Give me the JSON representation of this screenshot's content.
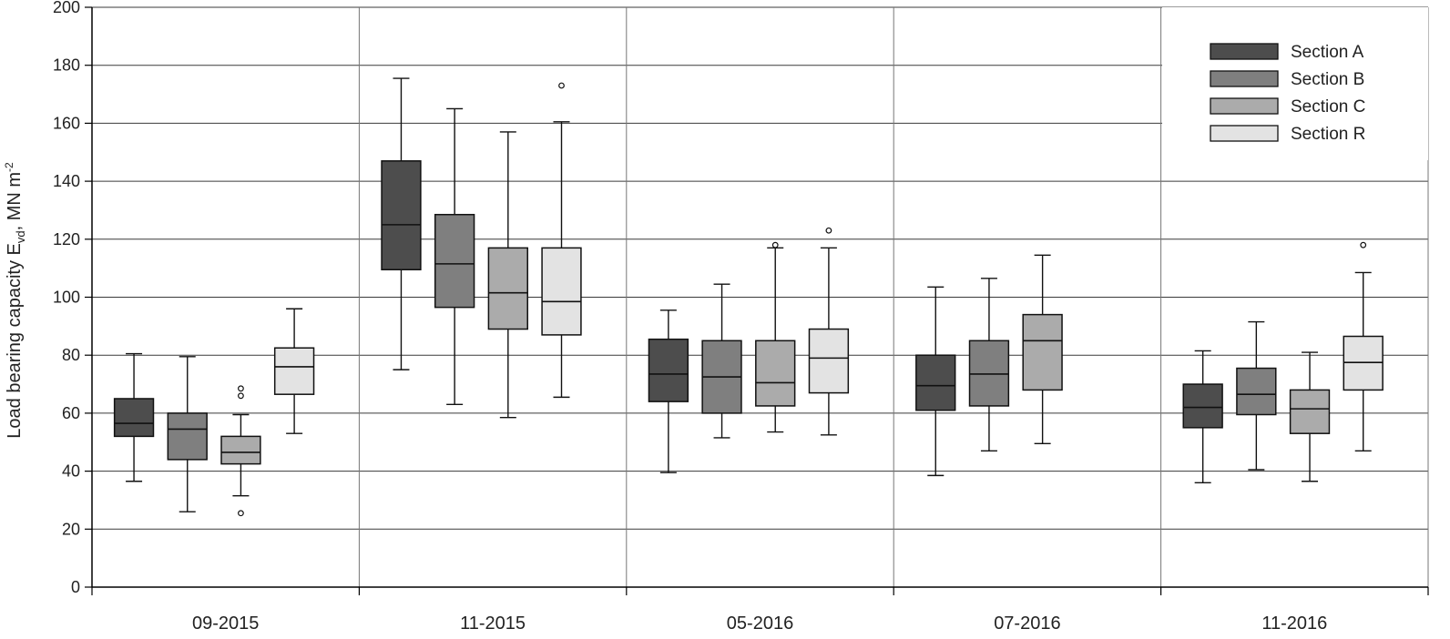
{
  "chart_data": {
    "type": "boxplot",
    "ylabel": {
      "main": "Load bearing capacity E",
      "sub": "vd",
      "unit": ", MN m",
      "sup": "-2"
    },
    "ylim": [
      0,
      200
    ],
    "yticks": [
      0,
      20,
      40,
      60,
      80,
      100,
      120,
      140,
      160,
      180,
      200
    ],
    "grid": true,
    "legend_position": "top-right",
    "categories": [
      "09-2015",
      "11-2015",
      "05-2016",
      "07-2016",
      "11-2016"
    ],
    "series": [
      {
        "name": "Section A",
        "color": "#4d4d4d",
        "boxes": [
          {
            "category": "09-2015",
            "whisker_low": 36.5,
            "q1": 52,
            "median": 56.5,
            "q3": 65,
            "whisker_high": 80.5,
            "outliers": []
          },
          {
            "category": "11-2015",
            "whisker_low": 75,
            "q1": 109.5,
            "median": 125,
            "q3": 147,
            "whisker_high": 175.5,
            "outliers": []
          },
          {
            "category": "05-2016",
            "whisker_low": 39.5,
            "q1": 64,
            "median": 73.5,
            "q3": 85.5,
            "whisker_high": 95.5,
            "outliers": []
          },
          {
            "category": "07-2016",
            "whisker_low": 38.5,
            "q1": 61,
            "median": 69.5,
            "q3": 80,
            "whisker_high": 103.5,
            "outliers": []
          },
          {
            "category": "11-2016",
            "whisker_low": 36,
            "q1": 55,
            "median": 62,
            "q3": 70,
            "whisker_high": 81.5,
            "outliers": []
          }
        ]
      },
      {
        "name": "Section B",
        "color": "#7f7f7f",
        "boxes": [
          {
            "category": "09-2015",
            "whisker_low": 26,
            "q1": 44,
            "median": 54.5,
            "q3": 60,
            "whisker_high": 79.5,
            "outliers": []
          },
          {
            "category": "11-2015",
            "whisker_low": 63,
            "q1": 96.5,
            "median": 111.5,
            "q3": 128.5,
            "whisker_high": 165,
            "outliers": []
          },
          {
            "category": "05-2016",
            "whisker_low": 51.5,
            "q1": 60,
            "median": 72.5,
            "q3": 85,
            "whisker_high": 104.5,
            "outliers": []
          },
          {
            "category": "07-2016",
            "whisker_low": 47,
            "q1": 62.5,
            "median": 73.5,
            "q3": 85,
            "whisker_high": 106.5,
            "outliers": []
          },
          {
            "category": "11-2016",
            "whisker_low": 40.5,
            "q1": 59.5,
            "median": 66.5,
            "q3": 75.5,
            "whisker_high": 91.5,
            "outliers": []
          }
        ]
      },
      {
        "name": "Section C",
        "color": "#ababab",
        "boxes": [
          {
            "category": "09-2015",
            "whisker_low": 31.5,
            "q1": 42.5,
            "median": 46.5,
            "q3": 52,
            "whisker_high": 59.5,
            "outliers": [
              25.5,
              66,
              68.5
            ]
          },
          {
            "category": "11-2015",
            "whisker_low": 58.5,
            "q1": 89,
            "median": 101.5,
            "q3": 117,
            "whisker_high": 157,
            "outliers": []
          },
          {
            "category": "05-2016",
            "whisker_low": 53.5,
            "q1": 62.5,
            "median": 70.5,
            "q3": 85,
            "whisker_high": 117,
            "outliers": [
              118
            ]
          },
          {
            "category": "07-2016",
            "whisker_low": 49.5,
            "q1": 68,
            "median": 85,
            "q3": 94,
            "whisker_high": 114.5,
            "outliers": []
          },
          {
            "category": "11-2016",
            "whisker_low": 36.5,
            "q1": 53,
            "median": 61.5,
            "q3": 68,
            "whisker_high": 81,
            "outliers": []
          }
        ]
      },
      {
        "name": "Section R",
        "color": "#e3e3e3",
        "boxes": [
          {
            "category": "09-2015",
            "whisker_low": 53,
            "q1": 66.5,
            "median": 76,
            "q3": 82.5,
            "whisker_high": 96,
            "outliers": []
          },
          {
            "category": "11-2015",
            "whisker_low": 65.5,
            "q1": 87,
            "median": 98.5,
            "q3": 117,
            "whisker_high": 160.5,
            "outliers": [
              173
            ]
          },
          {
            "category": "05-2016",
            "whisker_low": 52.5,
            "q1": 67,
            "median": 79,
            "q3": 89,
            "whisker_high": 117,
            "outliers": [
              123
            ]
          },
          {
            "category": "11-2016",
            "whisker_low": 47,
            "q1": 68,
            "median": 77.5,
            "q3": 86.5,
            "whisker_high": 108.5,
            "outliers": [
              118
            ]
          }
        ]
      }
    ]
  }
}
